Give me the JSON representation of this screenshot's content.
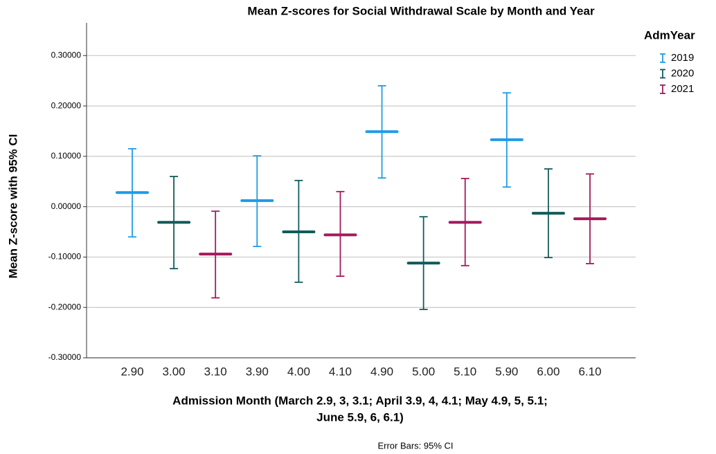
{
  "chart_data": {
    "type": "errorbar",
    "title": "Mean Z-scores for Social Withdrawal Scale by Month and Year",
    "x_label": [
      "Admission Month (March 2.9, 3, 3.1; April 3.9, 4, 4.1; May 4.9, 5, 5.1;",
      "June 5.9, 6, 6.1)"
    ],
    "y_label": "Mean Z-score with 95% CI",
    "footnote": "Error Bars: 95% CI",
    "legend_title": "AdmYear",
    "legend_position": "right",
    "grid": true,
    "categories": [
      "2.90",
      "3.00",
      "3.10",
      "3.90",
      "4.00",
      "4.10",
      "4.90",
      "5.00",
      "5.10",
      "5.90",
      "6.00",
      "6.10"
    ],
    "ylim": [
      -0.3,
      0.365
    ],
    "yticks": [
      {
        "value": -0.3,
        "label": "-0.30000"
      },
      {
        "value": -0.2,
        "label": "-0.20000"
      },
      {
        "value": -0.1,
        "label": "-0.10000"
      },
      {
        "value": 0,
        "label": "0.00000"
      },
      {
        "value": 0.1,
        "label": "0.10000"
      },
      {
        "value": 0.2,
        "label": "0.20000"
      },
      {
        "value": 0.3,
        "label": "0.30000"
      }
    ],
    "series": [
      {
        "name": "2019",
        "color": "#1f9be6",
        "values": [
          0.028,
          null,
          null,
          0.012,
          null,
          null,
          0.149,
          null,
          null,
          0.133,
          null,
          null
        ],
        "lower": [
          -0.06,
          null,
          null,
          -0.079,
          null,
          null,
          0.057,
          null,
          null,
          0.039,
          null,
          null
        ],
        "upper": [
          0.115,
          null,
          null,
          0.101,
          null,
          null,
          0.24,
          null,
          null,
          0.226,
          null,
          null
        ]
      },
      {
        "name": "2020",
        "color": "#125b5a",
        "values": [
          null,
          -0.031,
          null,
          null,
          -0.05,
          null,
          null,
          -0.112,
          null,
          null,
          -0.013,
          null
        ],
        "lower": [
          null,
          -0.123,
          null,
          null,
          -0.15,
          null,
          null,
          -0.204,
          null,
          null,
          -0.101,
          null
        ],
        "upper": [
          null,
          0.06,
          null,
          null,
          0.052,
          null,
          null,
          -0.02,
          null,
          null,
          0.075,
          null
        ]
      },
      {
        "name": "2021",
        "color": "#a5195c",
        "values": [
          null,
          null,
          -0.094,
          null,
          null,
          -0.056,
          null,
          null,
          -0.031,
          null,
          null,
          -0.024
        ],
        "lower": [
          null,
          null,
          -0.181,
          null,
          null,
          -0.138,
          null,
          null,
          -0.117,
          null,
          null,
          -0.113
        ],
        "upper": [
          null,
          null,
          -0.009,
          null,
          null,
          0.03,
          null,
          null,
          0.056,
          null,
          null,
          0.065
        ]
      }
    ]
  }
}
